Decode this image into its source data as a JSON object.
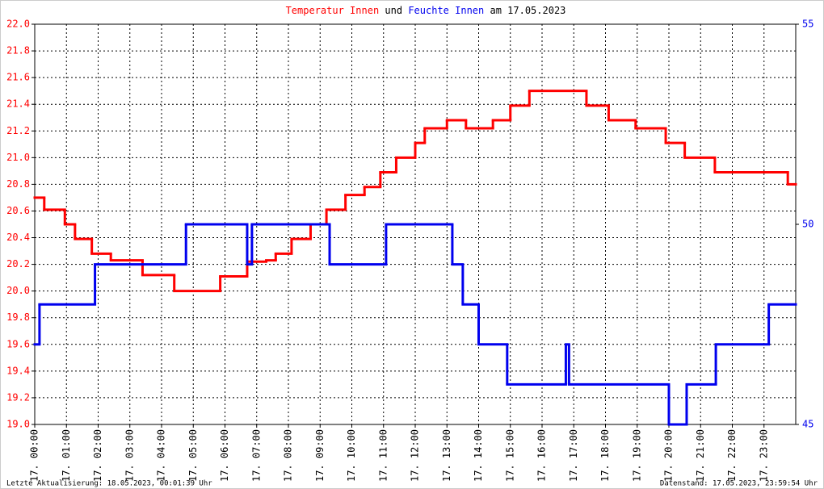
{
  "chart_data": {
    "type": "line",
    "title_join": "und",
    "title_date": "am 17.05.2023",
    "footer_left": "Letzte Aktualisierung: 18.05.2023, 00:01:39 Uhr",
    "footer_right": "Datenstand: 17.05.2023, 23:59:54 Uhr",
    "step": true,
    "grid": true,
    "xlim": [
      0,
      24
    ],
    "xticks": [
      {
        "value": 0,
        "label": "17. 00:00"
      },
      {
        "value": 1,
        "label": "17. 01:00"
      },
      {
        "value": 2,
        "label": "17. 02:00"
      },
      {
        "value": 3,
        "label": "17. 03:00"
      },
      {
        "value": 4,
        "label": "17. 04:00"
      },
      {
        "value": 5,
        "label": "17. 05:00"
      },
      {
        "value": 6,
        "label": "17. 06:00"
      },
      {
        "value": 7,
        "label": "17. 07:00"
      },
      {
        "value": 8,
        "label": "17. 08:00"
      },
      {
        "value": 9,
        "label": "17. 09:00"
      },
      {
        "value": 10,
        "label": "17. 10:00"
      },
      {
        "value": 11,
        "label": "17. 11:00"
      },
      {
        "value": 12,
        "label": "17. 12:00"
      },
      {
        "value": 13,
        "label": "17. 13:00"
      },
      {
        "value": 14,
        "label": "17. 14:00"
      },
      {
        "value": 15,
        "label": "17. 15:00"
      },
      {
        "value": 16,
        "label": "17. 16:00"
      },
      {
        "value": 17,
        "label": "17. 17:00"
      },
      {
        "value": 18,
        "label": "17. 18:00"
      },
      {
        "value": 19,
        "label": "17. 19:00"
      },
      {
        "value": 20,
        "label": "17. 20:00"
      },
      {
        "value": 21,
        "label": "17. 21:00"
      },
      {
        "value": 22,
        "label": "17. 22:00"
      },
      {
        "value": 23,
        "label": "17. 23:00"
      }
    ],
    "ylim": [
      19.0,
      22.0
    ],
    "yticks": [
      {
        "value": 19.0,
        "label": "19.0"
      },
      {
        "value": 19.2,
        "label": "19.2"
      },
      {
        "value": 19.4,
        "label": "19.4"
      },
      {
        "value": 19.6,
        "label": "19.6"
      },
      {
        "value": 19.8,
        "label": "19.8"
      },
      {
        "value": 20.0,
        "label": "20.0"
      },
      {
        "value": 20.2,
        "label": "20.2"
      },
      {
        "value": 20.4,
        "label": "20.4"
      },
      {
        "value": 20.6,
        "label": "20.6"
      },
      {
        "value": 20.8,
        "label": "20.8"
      },
      {
        "value": 21.0,
        "label": "21.0"
      },
      {
        "value": 21.2,
        "label": "21.2"
      },
      {
        "value": 21.4,
        "label": "21.4"
      },
      {
        "value": 21.6,
        "label": "21.6"
      },
      {
        "value": 21.8,
        "label": "21.8"
      },
      {
        "value": 22.0,
        "label": "22.0"
      }
    ],
    "y2lim": [
      45,
      55
    ],
    "y2ticks": [
      45,
      50,
      55
    ],
    "series": [
      {
        "name": "Temperatur Innen",
        "color": "#ff0000",
        "axis": "y",
        "x": [
          0,
          0.3,
          0.95,
          1.27,
          1.8,
          2.4,
          3.4,
          4.4,
          5.85,
          6.7,
          7.3,
          7.6,
          8.1,
          8.7,
          9.2,
          9.8,
          10.4,
          10.9,
          11.4,
          12.0,
          12.3,
          13.0,
          13.6,
          14.45,
          15.0,
          15.6,
          17.4,
          18.1,
          18.95,
          19.9,
          20.5,
          21.45,
          23.75
        ],
        "values": [
          20.7,
          20.61,
          20.5,
          20.39,
          20.28,
          20.23,
          20.12,
          20.0,
          20.11,
          20.22,
          20.23,
          20.28,
          20.39,
          20.5,
          20.61,
          20.72,
          20.78,
          20.89,
          21.0,
          21.11,
          21.22,
          21.28,
          21.22,
          21.28,
          21.39,
          21.5,
          21.39,
          21.28,
          21.22,
          21.11,
          21.0,
          20.89,
          20.8
        ]
      },
      {
        "name": "Feuchte Innen",
        "color": "#0000ee",
        "axis": "y2",
        "x": [
          0,
          0.15,
          1.9,
          4.77,
          6.7,
          6.85,
          9.3,
          11.08,
          13.17,
          13.5,
          14.0,
          14.9,
          16.75,
          16.85,
          20.0,
          20.56,
          21.48,
          23.15
        ],
        "values": [
          47,
          48,
          49,
          50,
          49,
          50,
          49,
          50,
          49,
          48,
          47,
          46,
          47,
          46,
          45,
          46,
          47,
          48
        ]
      }
    ]
  }
}
